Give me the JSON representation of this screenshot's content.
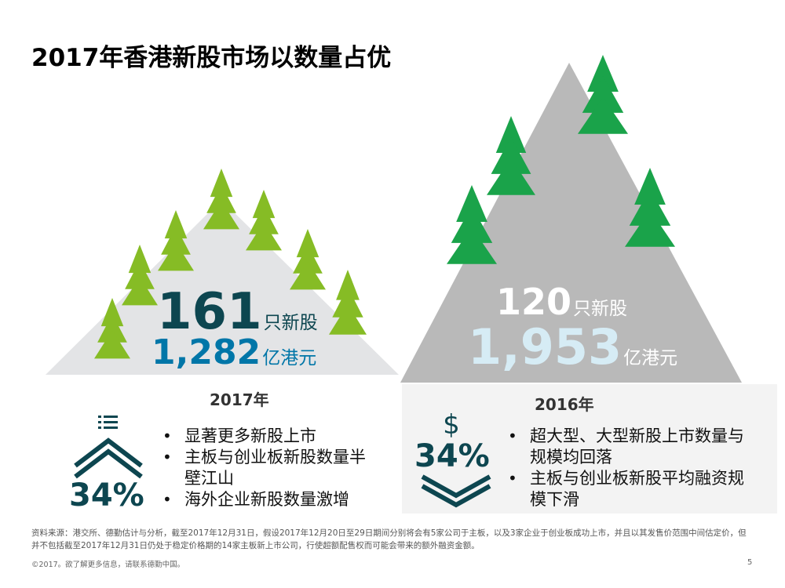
{
  "title": "2017年香港新股市场以数量占优",
  "colors": {
    "tree_light": "#86bc25",
    "tree_dark": "#1aa34a",
    "mountain_2017": "#e3e4e6",
    "mountain_2016": "#b9b9b9",
    "panel_2016": "#f0f0f0",
    "teal": "#0d4650",
    "blue": "#0076a8",
    "light_blue": "#d6ecf5"
  },
  "left": {
    "count": "161",
    "count_unit": "只新股",
    "amount": "1,282",
    "amount_unit": "亿港元",
    "year": "2017年",
    "percent": "34%",
    "icon": "list-with-up-chevrons-icon",
    "bullets": [
      "显著更多新股上市",
      "主板与创业板新股数量半壁江山",
      "海外企业新股数量激增"
    ]
  },
  "right": {
    "count": "120",
    "count_unit": "只新股",
    "amount": "1,953",
    "amount_unit": "亿港元",
    "year": "2016年",
    "percent": "34%",
    "icon": "dollar-with-down-chevrons-icon",
    "bullets": [
      "超大型、大型新股上市数量与规模均回落",
      "主板与创业板新股平均融资规模下滑"
    ]
  },
  "footer": {
    "source": "资料来源：港交所、德勤估计与分析，截至2017年12月31日，假设2017年12月20日至29日期间分别将会有5家公司于主板，以及3家企业于创业板成功上市，并且以其发售价范围中间估定价，但并不包括截至2017年12月31日仍处于稳定价格期的14家主板新上市公司，行使超额配售权而可能会带来的额外融资金额。",
    "copyright": "©2017。欲了解更多信息，请联系德勤中国。",
    "page_number": "5"
  }
}
